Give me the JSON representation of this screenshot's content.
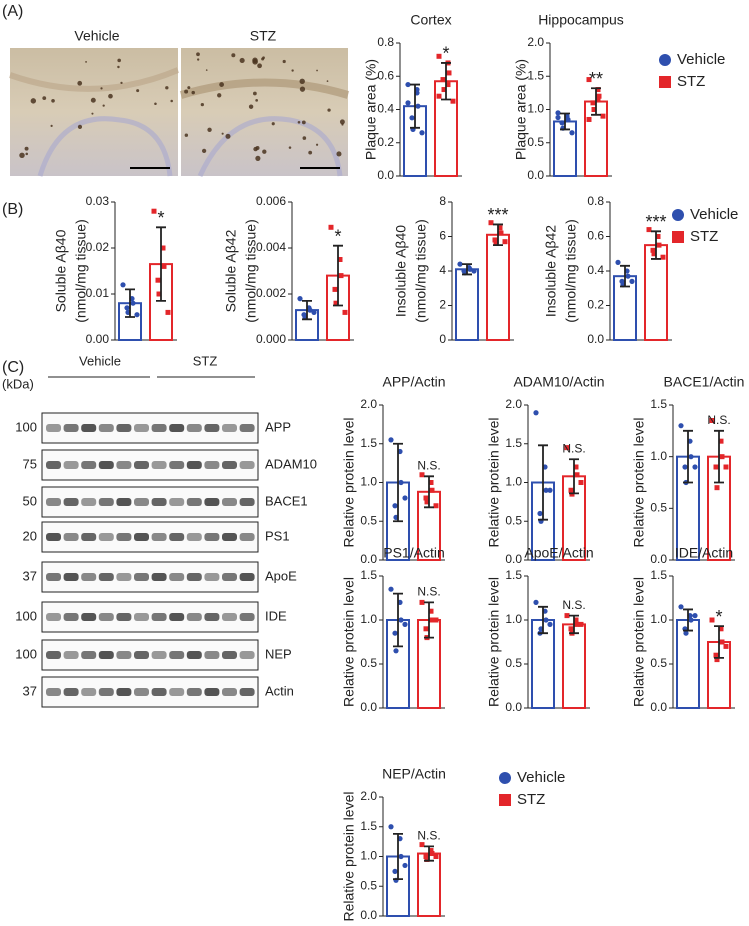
{
  "panels": [
    "(A)",
    "(B)",
    "(C)"
  ],
  "micrographs": [
    "Vehicle",
    "STZ"
  ],
  "blot": {
    "groups": [
      "Vehicle",
      "STZ"
    ],
    "unit": "(kDa)",
    "rows": [
      {
        "protein": "APP",
        "marker": 100
      },
      {
        "protein": "ADAM10",
        "marker": 75
      },
      {
        "protein": "BACE1",
        "marker": 50
      },
      {
        "protein": "PS1",
        "marker": 20
      },
      {
        "protein": "ApoE",
        "marker": 37
      },
      {
        "protein": "IDE",
        "marker": 100
      },
      {
        "protein": "NEP",
        "marker": 100
      },
      {
        "protein": "Actin",
        "marker": 37
      }
    ]
  },
  "legends": [
    {
      "entries": [
        {
          "name": "Vehicle",
          "color": "#2e4fae"
        },
        {
          "name": "STZ",
          "color": "#e3262a"
        }
      ]
    },
    {
      "entries": [
        {
          "name": "Vehicle",
          "color": "#2e4fae"
        },
        {
          "name": "STZ",
          "color": "#e3262a"
        }
      ]
    },
    {
      "entries": [
        {
          "name": "Vehicle",
          "color": "#2e4fae"
        },
        {
          "name": "STZ",
          "color": "#e3262a"
        }
      ]
    }
  ],
  "chart_data": [
    {
      "type": "bar",
      "title": "Cortex",
      "ylabel": [
        "Plaque area (%)"
      ],
      "colors": [
        "#2e4fae",
        "#e3262a"
      ],
      "values": [
        0.42,
        0.57
      ],
      "errors": [
        0.13,
        0.11
      ],
      "points": [
        [
          0.55,
          0.52,
          0.42,
          0.35,
          0.28,
          0.26,
          0.44,
          0.5
        ],
        [
          0.72,
          0.68,
          0.62,
          0.58,
          0.52,
          0.45,
          0.48,
          0.55
        ]
      ],
      "annotation": "*",
      "ylim": [
        0,
        0.8
      ],
      "yticks": [
        {
          "value": 0,
          "label": "0.0"
        },
        {
          "value": 0.2,
          "label": "0.2"
        },
        {
          "value": 0.4,
          "label": "0.4"
        },
        {
          "value": 0.6,
          "label": "0.6"
        },
        {
          "value": 0.8,
          "label": "0.8"
        }
      ]
    },
    {
      "type": "bar",
      "title": "Hippocampus",
      "ylabel": [
        "Plaque area (%)"
      ],
      "colors": [
        "#2e4fae",
        "#e3262a"
      ],
      "values": [
        0.82,
        1.12
      ],
      "errors": [
        0.12,
        0.2
      ],
      "points": [
        [
          0.95,
          0.9,
          0.85,
          0.8,
          0.72,
          0.65,
          0.88
        ],
        [
          1.45,
          1.3,
          1.2,
          1.1,
          1.0,
          0.9,
          0.85,
          1.15
        ]
      ],
      "annotation": "**",
      "ylim": [
        0,
        2
      ],
      "yticks": [
        {
          "value": 0,
          "label": "0.0"
        },
        {
          "value": 0.5,
          "label": "0.5"
        },
        {
          "value": 1,
          "label": "1.0"
        },
        {
          "value": 1.5,
          "label": "1.5"
        },
        {
          "value": 2,
          "label": "2.0"
        }
      ]
    },
    {
      "type": "bar",
      "ylabel": [
        "Soluble Aβ40",
        "(nmol/mg tissue)"
      ],
      "colors": [
        "#2e4fae",
        "#e3262a"
      ],
      "values": [
        0.008,
        0.0165
      ],
      "errors": [
        0.003,
        0.008
      ],
      "points": [
        [
          0.012,
          0.009,
          0.008,
          0.007,
          0.006,
          0.0055
        ],
        [
          0.028,
          0.02,
          0.016,
          0.013,
          0.01,
          0.006
        ]
      ],
      "annotation": "*",
      "ylim": [
        0,
        0.03
      ],
      "yticks": [
        {
          "value": 0,
          "label": "0.00"
        },
        {
          "value": 0.01,
          "label": "0.01"
        },
        {
          "value": 0.02,
          "label": "0.02"
        },
        {
          "value": 0.03,
          "label": "0.03"
        }
      ]
    },
    {
      "type": "bar",
      "ylabel": [
        "Soluble Aβ42",
        "(nmol/mg tissue)"
      ],
      "colors": [
        "#2e4fae",
        "#e3262a"
      ],
      "values": [
        0.0013,
        0.0028
      ],
      "errors": [
        0.0004,
        0.0013
      ],
      "points": [
        [
          0.0018,
          0.0014,
          0.0013,
          0.0011,
          0.001,
          0.0012
        ],
        [
          0.0049,
          0.0035,
          0.0028,
          0.0022,
          0.0016,
          0.0012
        ]
      ],
      "annotation": "*",
      "ylim": [
        0,
        0.006
      ],
      "yticks": [
        {
          "value": 0,
          "label": "0.000"
        },
        {
          "value": 0.002,
          "label": "0.002"
        },
        {
          "value": 0.004,
          "label": "0.004"
        },
        {
          "value": 0.006,
          "label": "0.006"
        }
      ]
    },
    {
      "type": "bar",
      "ylabel": [
        "Insoluble Aβ40",
        "(nmol/mg tissue)"
      ],
      "colors": [
        "#2e4fae",
        "#e3262a"
      ],
      "values": [
        4.1,
        6.1
      ],
      "errors": [
        0.3,
        0.6
      ],
      "points": [
        [
          4.4,
          4.2,
          4.1,
          4.0,
          3.9,
          4.0
        ],
        [
          6.8,
          6.5,
          6.2,
          5.8,
          5.6,
          5.7
        ]
      ],
      "annotation": "***",
      "ylim": [
        0,
        8
      ],
      "yticks": [
        0,
        2,
        4,
        6,
        8
      ]
    },
    {
      "type": "bar",
      "ylabel": [
        "Insoluble Aβ42",
        "(nmol/mg tissue)"
      ],
      "colors": [
        "#2e4fae",
        "#e3262a"
      ],
      "values": [
        0.37,
        0.55
      ],
      "errors": [
        0.06,
        0.08
      ],
      "points": [
        [
          0.45,
          0.4,
          0.37,
          0.34,
          0.32,
          0.34
        ],
        [
          0.64,
          0.6,
          0.55,
          0.52,
          0.5,
          0.48
        ]
      ],
      "annotation": "***",
      "ylim": [
        0,
        0.8
      ],
      "yticks": [
        {
          "value": 0,
          "label": "0.0"
        },
        {
          "value": 0.2,
          "label": "0.2"
        },
        {
          "value": 0.4,
          "label": "0.4"
        },
        {
          "value": 0.6,
          "label": "0.6"
        },
        {
          "value": 0.8,
          "label": "0.8"
        }
      ]
    },
    {
      "type": "bar",
      "title": "APP/Actin",
      "ylabel": [
        "Relative protein level"
      ],
      "colors": [
        "#2e4fae",
        "#e3262a"
      ],
      "values": [
        1.0,
        0.88
      ],
      "errors": [
        0.5,
        0.2
      ],
      "points": [
        [
          1.55,
          1.4,
          1.0,
          0.7,
          0.55,
          0.8
        ],
        [
          1.1,
          1.0,
          0.9,
          0.8,
          0.75,
          0.7
        ]
      ],
      "annotation": "N.S.",
      "ylim": [
        0,
        2
      ],
      "yticks": [
        {
          "value": 0,
          "label": "0.0"
        },
        {
          "value": 0.5,
          "label": "0.5"
        },
        {
          "value": 1,
          "label": "1.0"
        },
        {
          "value": 1.5,
          "label": "1.5"
        },
        {
          "value": 2,
          "label": "2.0"
        }
      ]
    },
    {
      "type": "bar",
      "title": "ADAM10/Actin",
      "ylabel": [
        "Relative protein level"
      ],
      "colors": [
        "#2e4fae",
        "#e3262a"
      ],
      "values": [
        1.0,
        1.08
      ],
      "errors": [
        0.48,
        0.22
      ],
      "points": [
        [
          1.9,
          1.2,
          0.9,
          0.6,
          0.5,
          0.9
        ],
        [
          1.45,
          1.2,
          1.1,
          0.9,
          0.85,
          1.0
        ]
      ],
      "annotation": "N.S.",
      "ylim": [
        0,
        2
      ],
      "yticks": [
        {
          "value": 0,
          "label": "0.0"
        },
        {
          "value": 0.5,
          "label": "0.5"
        },
        {
          "value": 1,
          "label": "1.0"
        },
        {
          "value": 1.5,
          "label": "1.5"
        },
        {
          "value": 2,
          "label": "2.0"
        }
      ]
    },
    {
      "type": "bar",
      "title": "BACE1/Actin",
      "ylabel": [
        "Relative protein level"
      ],
      "colors": [
        "#2e4fae",
        "#e3262a"
      ],
      "values": [
        1.0,
        1.0
      ],
      "errors": [
        0.25,
        0.25
      ],
      "points": [
        [
          1.3,
          1.15,
          1.0,
          0.9,
          0.75,
          0.9
        ],
        [
          1.35,
          1.15,
          1.0,
          0.9,
          0.7,
          0.9
        ]
      ],
      "annotation": "N.S.",
      "ylim": [
        0,
        1.5
      ],
      "yticks": [
        {
          "value": 0,
          "label": "0.0"
        },
        {
          "value": 0.5,
          "label": "0.5"
        },
        {
          "value": 1,
          "label": "1.0"
        },
        {
          "value": 1.5,
          "label": "1.5"
        }
      ]
    },
    {
      "type": "bar",
      "title": "PS1/Actin",
      "ylabel": [
        "Relative protein level"
      ],
      "colors": [
        "#2e4fae",
        "#e3262a"
      ],
      "values": [
        1.0,
        1.0
      ],
      "errors": [
        0.3,
        0.2
      ],
      "points": [
        [
          1.35,
          1.2,
          1.0,
          0.85,
          0.65,
          0.95
        ],
        [
          1.2,
          1.1,
          1.0,
          0.9,
          0.8,
          1.0
        ]
      ],
      "annotation": "N.S.",
      "ylim": [
        0,
        1.5
      ],
      "yticks": [
        {
          "value": 0,
          "label": "0.0"
        },
        {
          "value": 0.5,
          "label": "0.5"
        },
        {
          "value": 1,
          "label": "1.0"
        },
        {
          "value": 1.5,
          "label": "1.5"
        }
      ]
    },
    {
      "type": "bar",
      "title": "ApoE/Actin",
      "ylabel": [
        "Relative protein level"
      ],
      "colors": [
        "#2e4fae",
        "#e3262a"
      ],
      "values": [
        1.0,
        0.95
      ],
      "errors": [
        0.15,
        0.1
      ],
      "points": [
        [
          1.2,
          1.1,
          1.0,
          0.85,
          0.9,
          0.95
        ],
        [
          1.05,
          1.0,
          0.95,
          0.9,
          0.85,
          0.95
        ]
      ],
      "annotation": "N.S.",
      "ylim": [
        0,
        1.5
      ],
      "yticks": [
        {
          "value": 0,
          "label": "0.0"
        },
        {
          "value": 0.5,
          "label": "0.5"
        },
        {
          "value": 1,
          "label": "1.0"
        },
        {
          "value": 1.5,
          "label": "1.5"
        }
      ]
    },
    {
      "type": "bar",
      "title": "IDE/Actin",
      "ylabel": [
        "Relative protein level"
      ],
      "colors": [
        "#2e4fae",
        "#e3262a"
      ],
      "values": [
        1.0,
        0.75
      ],
      "errors": [
        0.12,
        0.18
      ],
      "points": [
        [
          1.15,
          1.05,
          1.0,
          0.9,
          0.85,
          1.05
        ],
        [
          1.0,
          0.9,
          0.75,
          0.6,
          0.55,
          0.7
        ]
      ],
      "annotation": "*",
      "ylim": [
        0,
        1.5
      ],
      "yticks": [
        {
          "value": 0,
          "label": "0.0"
        },
        {
          "value": 0.5,
          "label": "0.5"
        },
        {
          "value": 1,
          "label": "1.0"
        },
        {
          "value": 1.5,
          "label": "1.5"
        }
      ]
    },
    {
      "type": "bar",
      "title": "NEP/Actin",
      "ylabel": [
        "Relative protein level"
      ],
      "colors": [
        "#2e4fae",
        "#e3262a"
      ],
      "values": [
        1.0,
        1.05
      ],
      "errors": [
        0.38,
        0.12
      ],
      "points": [
        [
          1.5,
          1.3,
          1.0,
          0.75,
          0.6,
          0.85
        ],
        [
          1.2,
          1.1,
          1.05,
          1.0,
          0.95,
          1.0
        ]
      ],
      "annotation": "N.S.",
      "ylim": [
        0,
        2
      ],
      "yticks": [
        {
          "value": 0,
          "label": "0.0"
        },
        {
          "value": 0.5,
          "label": "0.5"
        },
        {
          "value": 1,
          "label": "1.0"
        },
        {
          "value": 1.5,
          "label": "1.5"
        },
        {
          "value": 2,
          "label": "2.0"
        }
      ]
    }
  ]
}
